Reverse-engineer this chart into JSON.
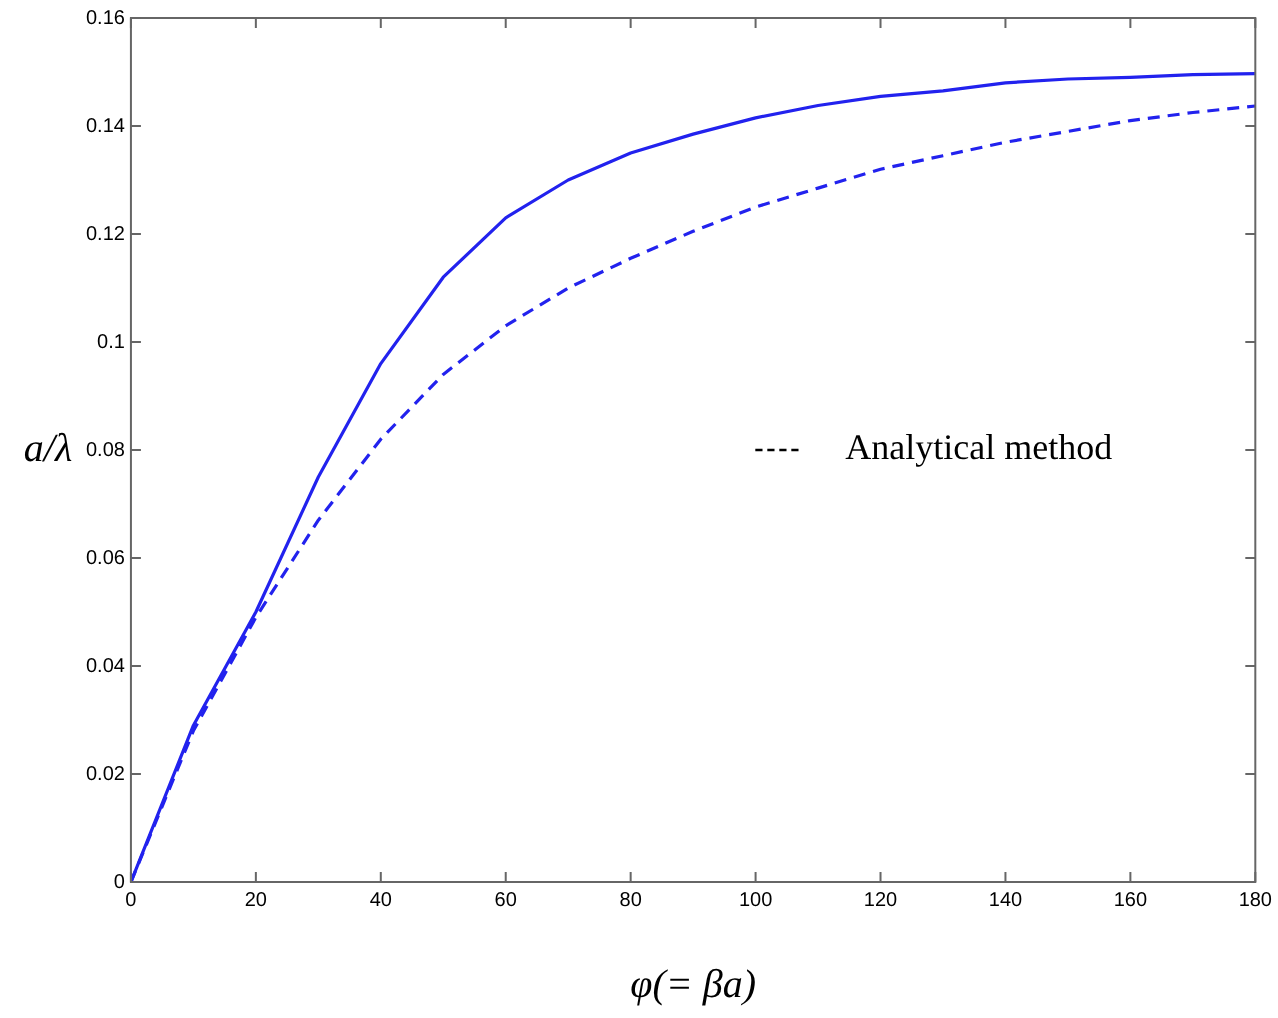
{
  "chart_data": {
    "type": "line",
    "xlabel": "φ(= βa)",
    "ylabel": "a/λ",
    "xlim": [
      0,
      180
    ],
    "xticks": [
      0,
      20,
      40,
      60,
      80,
      100,
      120,
      140,
      160,
      180
    ],
    "ylim": [
      0,
      0.16
    ],
    "yticks": [
      0,
      0.02,
      0.04,
      0.06,
      0.08,
      0.1,
      0.12,
      0.14,
      0.16
    ],
    "grid": false,
    "legend": "right",
    "marker": "none",
    "x": [
      0,
      10,
      20,
      30,
      40,
      50,
      60,
      70,
      80,
      90,
      100,
      110,
      120,
      130,
      140,
      150,
      160,
      170,
      180
    ],
    "series": [
      {
        "color": "#2222ee",
        "line_style": "solid",
        "values": [
          0,
          0.029,
          0.05,
          0.075,
          0.096,
          0.112,
          0.123,
          0.13,
          0.135,
          0.1385,
          0.1415,
          0.1438,
          0.1455,
          0.1465,
          0.148,
          0.1487,
          0.149,
          0.1495,
          0.1497
        ]
      },
      {
        "name": "Analytical method",
        "color": "#2222ee",
        "line_style": "dashed",
        "values": [
          0,
          0.028,
          0.049,
          0.067,
          0.082,
          0.094,
          0.103,
          0.11,
          0.1155,
          0.1205,
          0.125,
          0.1285,
          0.132,
          0.1345,
          0.137,
          0.139,
          0.141,
          0.1425,
          0.1437
        ]
      }
    ]
  }
}
